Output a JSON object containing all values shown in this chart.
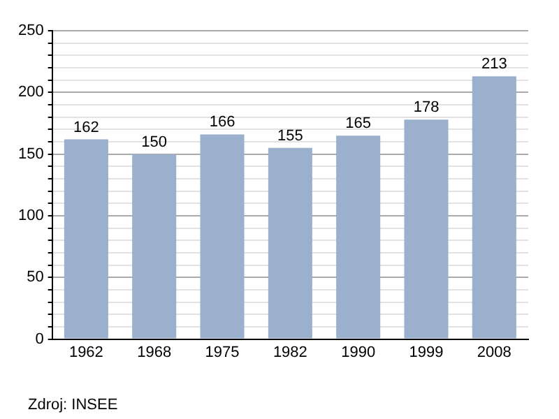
{
  "chart_data": {
    "type": "bar",
    "categories": [
      "1962",
      "1968",
      "1975",
      "1982",
      "1990",
      "1999",
      "2008"
    ],
    "values": [
      162,
      150,
      166,
      155,
      165,
      178,
      213
    ],
    "color": "#9bb0cc",
    "data_labels": true,
    "ylim": [
      0,
      250
    ],
    "yticks": [
      0,
      {
        "value": 10,
        "label": null
      },
      {
        "value": 20,
        "label": null
      },
      {
        "value": 30,
        "label": null
      },
      {
        "value": 40,
        "label": null
      },
      50,
      {
        "value": 60,
        "label": null
      },
      {
        "value": 70,
        "label": null
      },
      {
        "value": 80,
        "label": null
      },
      {
        "value": 90,
        "label": null
      },
      100,
      {
        "value": 110,
        "label": null
      },
      {
        "value": 120,
        "label": null
      },
      {
        "value": 130,
        "label": null
      },
      {
        "value": 140,
        "label": null
      },
      150,
      {
        "value": 160,
        "label": null
      },
      {
        "value": 170,
        "label": null
      },
      {
        "value": 180,
        "label": null
      },
      {
        "value": 190,
        "label": null
      },
      200,
      {
        "value": 210,
        "label": null
      },
      {
        "value": 220,
        "label": null
      },
      {
        "value": 230,
        "label": null
      },
      {
        "value": 240,
        "label": null
      },
      250
    ],
    "grid": "y",
    "legend": false,
    "annotations": [
      "Zdroj: INSEE"
    ]
  }
}
